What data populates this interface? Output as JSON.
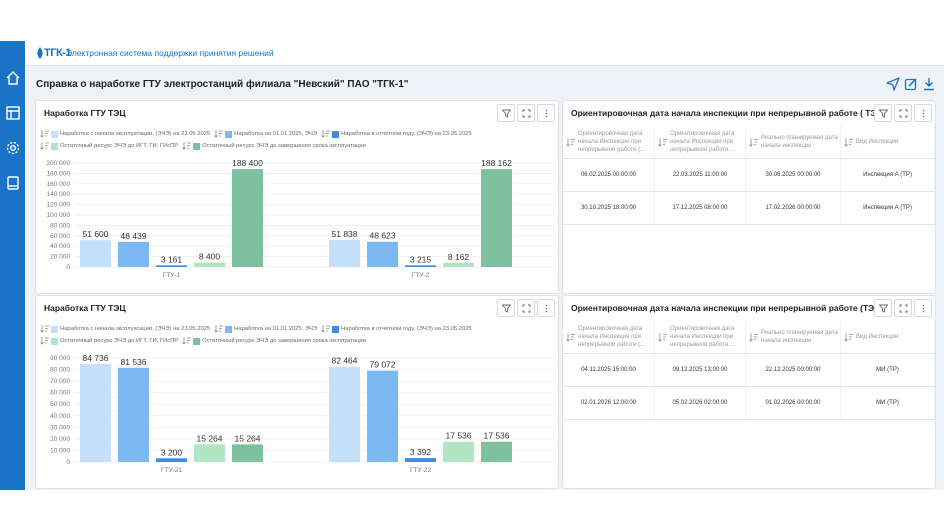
{
  "app": {
    "logo_text": "ТГК-1",
    "title": "Электронная система поддержки принятия решений"
  },
  "sidebar": {
    "items": [
      {
        "icon": "home-icon"
      },
      {
        "icon": "layout-icon"
      },
      {
        "icon": "gear-icon"
      },
      {
        "icon": "book-icon"
      }
    ]
  },
  "page": {
    "title": "Справка о наработке ГТУ электростанций филиала \"Невский\" ПАО \"ТГК-1\"",
    "actions": [
      "send-icon",
      "edit-icon",
      "download-icon"
    ]
  },
  "colors": {
    "accent": "#1a73c7",
    "series": [
      "#c5e0fa",
      "#7db9f1",
      "#3d8de0",
      "#b1e5c3",
      "#7fc19f"
    ]
  },
  "legend_labels": [
    "Наработка с начала эксплуатации, (ЭЧЭ) на 23.05.2025",
    "Наработка на 01.01.2025, ЭЧЭ",
    "Наработка в отчётном году, (ЭЧЭ) на 23.05.2025",
    "Остаточный ресурс ЭЧЭ до ИГТ, ГИ, ГИсПР",
    "Остаточный ресурс ЭЧЭ до завершения срока эксплуатации"
  ],
  "panels": {
    "chart1": {
      "title": "Наработка ГТУ   ТЭЦ"
    },
    "chart2": {
      "title": "Наработка ГТУ ТЭЦ"
    },
    "table1": {
      "title": "Ориентировочная дата начала инспекции при непрерывной работе (    ТЭ..."
    },
    "table2": {
      "title": "Ориентировочная дата начала инспекции при непрерывной работе (ТЭЦ-..."
    }
  },
  "chart_data": [
    {
      "type": "bar",
      "categories": [
        "ГТУ-1",
        "ГТУ-2"
      ],
      "series": [
        {
          "name": "Наработка с начала эксплуатации, (ЭЧЭ) на 23.05.2025",
          "values": [
            51600,
            51838
          ]
        },
        {
          "name": "Наработка на 01.01.2025, ЭЧЭ",
          "values": [
            48439,
            48623
          ]
        },
        {
          "name": "Наработка в отчётном году, (ЭЧЭ) на 23.05.2025",
          "values": [
            3161,
            3215
          ]
        },
        {
          "name": "Остаточный ресурс ЭЧЭ до ИГТ, ГИ, ГИсПР",
          "values": [
            8400,
            8162
          ]
        },
        {
          "name": "Остаточный ресурс ЭЧЭ до завершения срока эксплуатации",
          "values": [
            188400,
            188162
          ]
        }
      ],
      "value_labels": [
        [
          "51 600",
          "48 439",
          "3 161",
          "8 400",
          "188 400"
        ],
        [
          "51 838",
          "48 623",
          "3 215",
          "8 162",
          "188 162"
        ]
      ],
      "ylim": [
        0,
        200000
      ],
      "yticks": [
        "0",
        "20 000",
        "40 000",
        "60 000",
        "80 000",
        "100 000",
        "120 000",
        "140 000",
        "160 000",
        "180 000",
        "200 000"
      ],
      "grid": true,
      "legend": "top"
    },
    {
      "type": "bar",
      "categories": [
        "ГТУ-21",
        "ГТУ-22"
      ],
      "series": [
        {
          "name": "Наработка с начала эксплуатации, (ЭЧЭ) на 23.05.2025",
          "values": [
            84736,
            82464
          ]
        },
        {
          "name": "Наработка на 01.01.2025, ЭЧЭ",
          "values": [
            81536,
            79072
          ]
        },
        {
          "name": "Наработка в отчётном году, (ЭЧЭ) на 23.05.2025",
          "values": [
            3200,
            3392
          ]
        },
        {
          "name": "Остаточный ресурс ЭЧЭ до ИГТ, ГИ, ГИсПР",
          "values": [
            15264,
            17536
          ]
        },
        {
          "name": "Остаточный ресурс ЭЧЭ до завершения срока эксплуатации",
          "values": [
            15264,
            17536
          ]
        }
      ],
      "value_labels": [
        [
          "84 736",
          "81 536",
          "3 200",
          "15 264",
          "15 264"
        ],
        [
          "82 464",
          "79 072",
          "3 392",
          "17 536",
          "17 536"
        ]
      ],
      "ylim": [
        0,
        90000
      ],
      "yticks": [
        "0",
        "10 000",
        "20 000",
        "30 000",
        "40 000",
        "50 000",
        "60 000",
        "70 000",
        "80 000",
        "90 000"
      ],
      "grid": true,
      "legend": "top"
    }
  ],
  "table_headers": [
    "Ориентировочная дата начала Инспекции при непрерывной работе (...",
    "Ориентировочная дата начала Инспекции при непрерывной работе ...",
    "Реально планируемая дата начала инспекции",
    "Вид Инспекции"
  ],
  "table1": {
    "rows": [
      [
        "06.02.2025 00:00:00",
        "22.03.2025 11:00:00",
        "30.06.2025 00:00:00",
        "Инспекция А (ТР)"
      ],
      [
        "30.10.2025 18:00:00",
        "17.12.2025 08:00:00",
        "17.02.2026 00:00:00",
        "Инспекция А (ТР)"
      ]
    ]
  },
  "table2": {
    "rows": [
      [
        "04.11.2025 15:00:00",
        "09.12.2025 13:00:00",
        "22.12.2025 00:00:00",
        "МИ (ТР)"
      ],
      [
        "02.01.2026 12:00:00",
        "05.02.2026 02:00:00",
        "01.02.2026 00:00:00",
        "МИ (ТР)"
      ]
    ]
  }
}
